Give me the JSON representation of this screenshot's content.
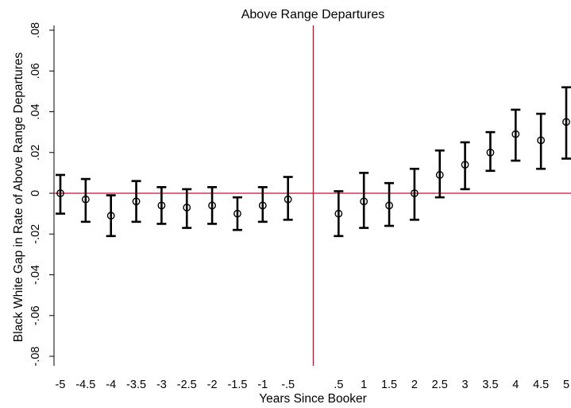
{
  "chart_data": {
    "type": "scatter",
    "title": "Above Range Departures",
    "xlabel": "Years Since Booker",
    "ylabel": "Black White Gap in Rate of Above Range Departures",
    "xlim": [
      -5,
      5
    ],
    "ylim": [
      -0.08,
      0.08
    ],
    "x_tick_labels": [
      "-5",
      "-4.5",
      "-4",
      "-3.5",
      "-3",
      "-2.5",
      "-2",
      "-1.5",
      "-1",
      "-.5",
      ".5",
      "1",
      "1.5",
      "2",
      "2.5",
      "3",
      "3.5",
      "4",
      "4.5",
      "5"
    ],
    "y_ticks": [
      -0.08,
      -0.06,
      -0.04,
      -0.02,
      0,
      0.02,
      0.04,
      0.06,
      0.08
    ],
    "y_tick_labels": [
      "-.08",
      "-.06",
      "-.04",
      "-.02",
      "0",
      ".02",
      ".04",
      ".06",
      ".08"
    ],
    "reference_lines": {
      "x": 0,
      "y": 0,
      "color": "#c8102e"
    },
    "points": [
      {
        "x": -5,
        "y": 0.0,
        "lo": -0.01,
        "hi": 0.009
      },
      {
        "x": -4.5,
        "y": -0.003,
        "lo": -0.014,
        "hi": 0.007
      },
      {
        "x": -4,
        "y": -0.011,
        "lo": -0.021,
        "hi": -0.001
      },
      {
        "x": -3.5,
        "y": -0.004,
        "lo": -0.014,
        "hi": 0.006
      },
      {
        "x": -3,
        "y": -0.006,
        "lo": -0.015,
        "hi": 0.003
      },
      {
        "x": -2.5,
        "y": -0.007,
        "lo": -0.017,
        "hi": 0.002
      },
      {
        "x": -2,
        "y": -0.006,
        "lo": -0.015,
        "hi": 0.003
      },
      {
        "x": -1.5,
        "y": -0.01,
        "lo": -0.018,
        "hi": -0.002
      },
      {
        "x": -1,
        "y": -0.006,
        "lo": -0.014,
        "hi": 0.003
      },
      {
        "x": -0.5,
        "y": -0.003,
        "lo": -0.013,
        "hi": 0.008
      },
      {
        "x": 0.5,
        "y": -0.01,
        "lo": -0.021,
        "hi": 0.001
      },
      {
        "x": 1,
        "y": -0.004,
        "lo": -0.017,
        "hi": 0.01
      },
      {
        "x": 1.5,
        "y": -0.006,
        "lo": -0.016,
        "hi": 0.005
      },
      {
        "x": 2,
        "y": 0.0,
        "lo": -0.013,
        "hi": 0.012
      },
      {
        "x": 2.5,
        "y": 0.009,
        "lo": -0.002,
        "hi": 0.021
      },
      {
        "x": 3,
        "y": 0.014,
        "lo": 0.002,
        "hi": 0.025
      },
      {
        "x": 3.5,
        "y": 0.02,
        "lo": 0.011,
        "hi": 0.03
      },
      {
        "x": 4,
        "y": 0.029,
        "lo": 0.016,
        "hi": 0.041
      },
      {
        "x": 4.5,
        "y": 0.026,
        "lo": 0.012,
        "hi": 0.039
      },
      {
        "x": 5,
        "y": 0.035,
        "lo": 0.017,
        "hi": 0.052
      }
    ]
  }
}
